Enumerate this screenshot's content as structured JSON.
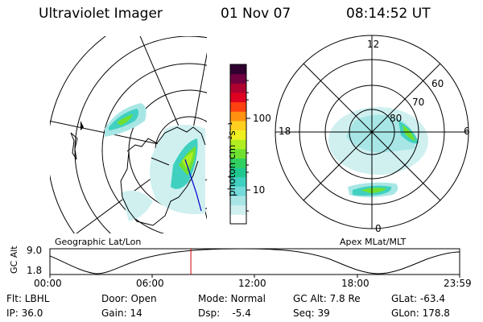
{
  "header": {
    "title": "Ultraviolet Imager",
    "date": "01 Nov 07",
    "time": "08:14:52 UT"
  },
  "colorbar": {
    "unit_label": "photon cm⁻²s⁻¹",
    "ticks": [
      "100",
      "10"
    ],
    "colors": [
      "#ffffff",
      "#d0f0f0",
      "#a8e6e6",
      "#74dada",
      "#40d0c0",
      "#20c890",
      "#30d060",
      "#70e030",
      "#b0ee20",
      "#f0f020",
      "#ffd020",
      "#ff9010",
      "#ff4010",
      "#e00020",
      "#b00030",
      "#700040",
      "#300030"
    ]
  },
  "left_panel": {
    "caption": "Geographic Lat/Lon"
  },
  "right_panel": {
    "caption": "Apex MLat/MLT",
    "mlt_labels": {
      "top": "12",
      "bottom": "0",
      "left": "18",
      "right": "6"
    },
    "lat_labels": [
      "60",
      "70",
      "80"
    ]
  },
  "altitude_plot": {
    "ylabel": "GC Alt",
    "yticks": [
      "9.0",
      "1.8"
    ],
    "xticks": [
      "00:00",
      "06:00",
      "12:00",
      "18:00",
      "23:59"
    ],
    "current_time_fraction": 0.344,
    "marker_color": "#cc0000"
  },
  "status": {
    "flt": "Flt: LBHL",
    "ip": "IP: 36.0",
    "door": "Door: Open",
    "gain": "Gain: 14",
    "mode": "Mode: Normal",
    "dsp": "Dsp:    -5.4",
    "gc_alt": "GC Alt: 7.8 Re",
    "seq": "Seq: 39",
    "glat": "GLat: -63.4",
    "glon": "GLon: 178.8"
  }
}
